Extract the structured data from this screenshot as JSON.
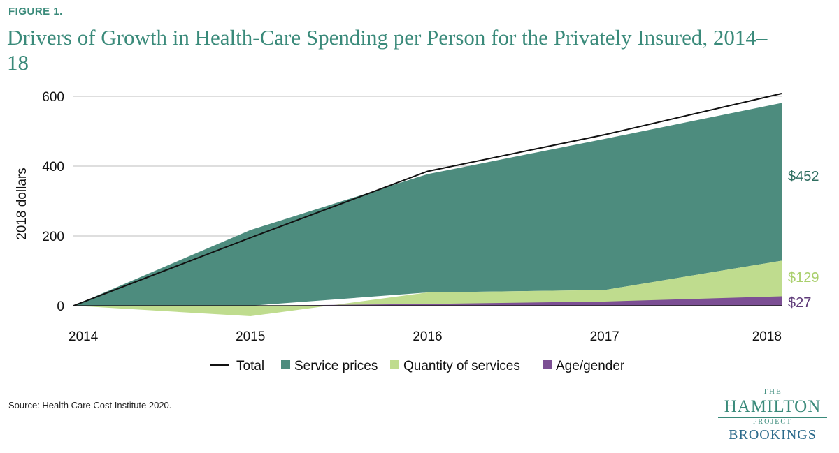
{
  "figure_label": "FIGURE 1.",
  "title": "Drivers of Growth in Health-Care Spending per Person for the Privately Insured, 2014–18",
  "source": "Source: Health Care Cost Institute 2020.",
  "logo": {
    "the": "THE",
    "hamilton": "HAMILTON",
    "project": "PROJECT",
    "brookings": "BROOKINGS"
  },
  "colors": {
    "service_prices": "#4d8c7e",
    "quantity": "#bfdc8e",
    "age_gender": "#7c4f94",
    "total": "#111111",
    "end_label_service": "#2f6e60",
    "end_label_quantity": "#a9cf6c",
    "end_label_age": "#5e3a78"
  },
  "chart_data": {
    "type": "area",
    "x": [
      "2014",
      "2015",
      "2016",
      "2017",
      "2018"
    ],
    "ylabel": "2018 dollars",
    "ylim": [
      -30,
      620
    ],
    "yticks": [
      0,
      200,
      400,
      600
    ],
    "grid": true,
    "legend_position": "bottom",
    "series": [
      {
        "name": "Age/gender",
        "values": [
          0,
          0,
          5,
          12,
          27
        ]
      },
      {
        "name": "Quantity of services",
        "values": [
          0,
          -30,
          38,
          45,
          129
        ]
      },
      {
        "name": "Service prices",
        "values": [
          0,
          217,
          339,
          433,
          452
        ]
      },
      {
        "name": "Total",
        "values": [
          0,
          195,
          385,
          490,
          608
        ]
      }
    ],
    "end_labels": [
      "$452",
      "$129",
      "$27"
    ]
  }
}
